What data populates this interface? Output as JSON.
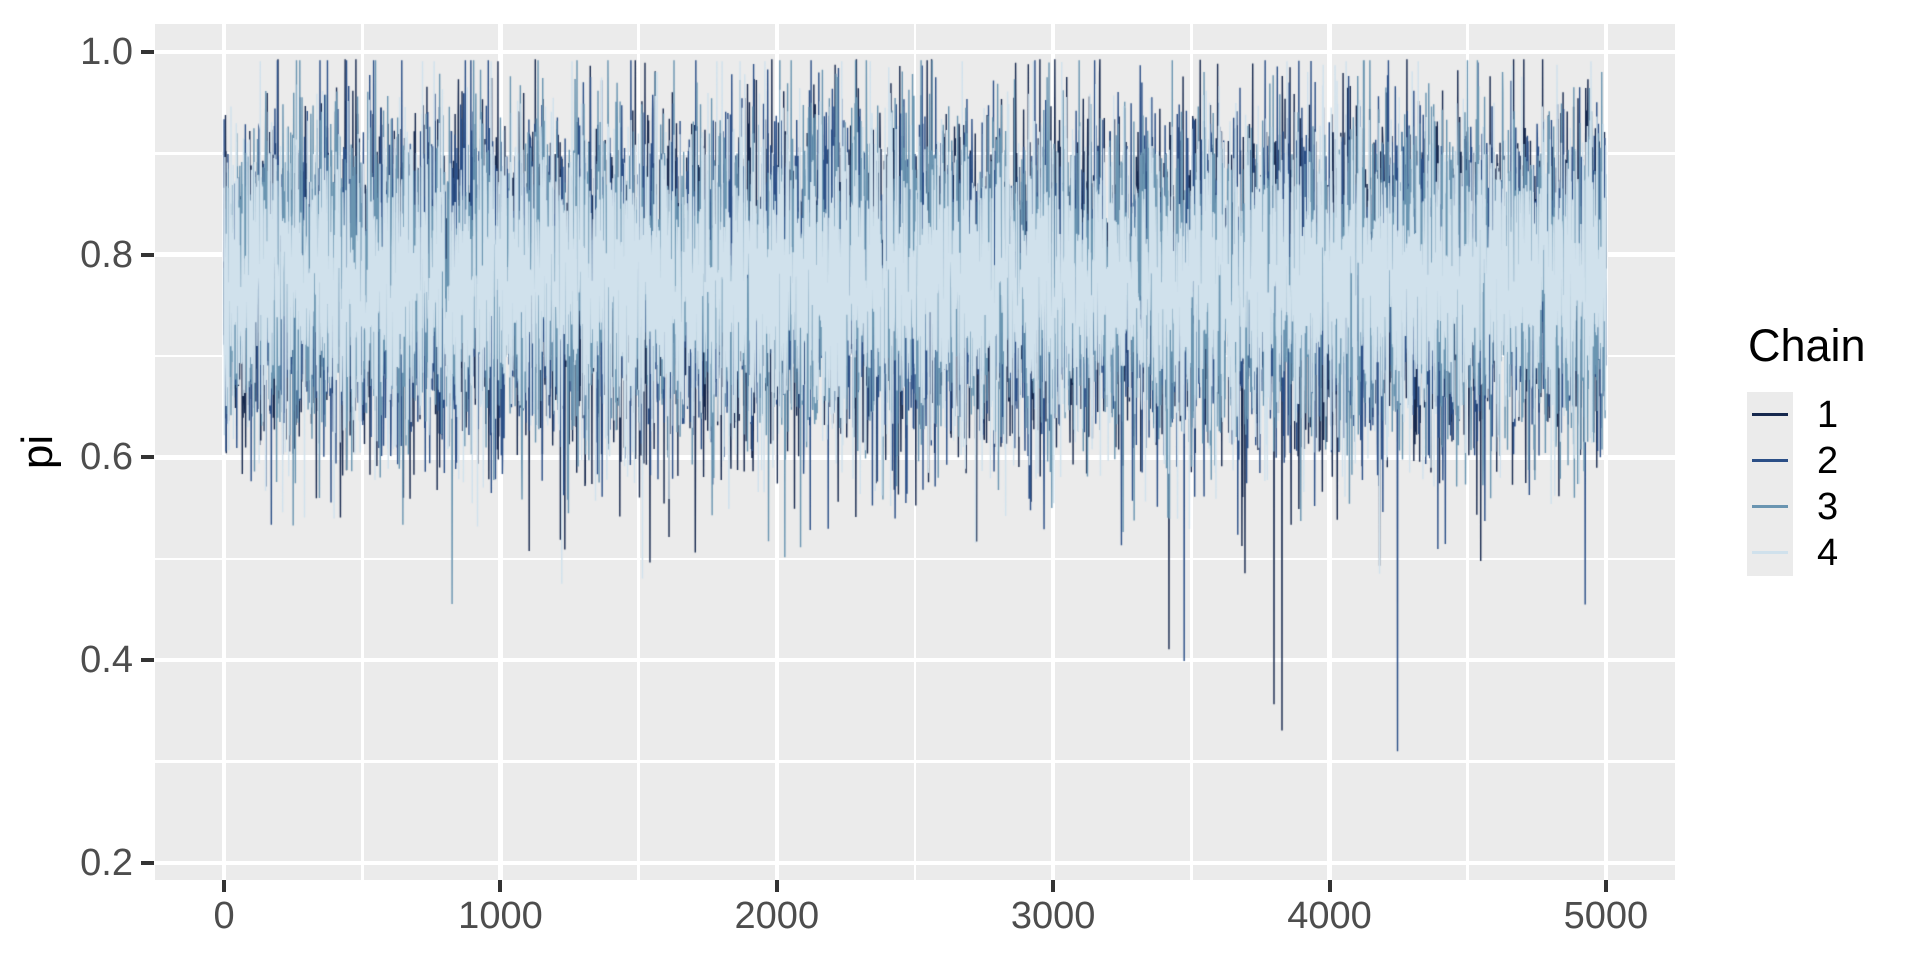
{
  "chart_data": {
    "type": "line",
    "subtype": "mcmc-trace",
    "title": "",
    "xlabel": "",
    "ylabel": "pi",
    "grid": true,
    "n_iterations": 5000,
    "x_axis": {
      "lim": [
        -250,
        5250
      ],
      "ticks": [
        0,
        1000,
        2000,
        3000,
        4000,
        5000
      ],
      "tick_labels": [
        "0",
        "1000",
        "2000",
        "3000",
        "4000",
        "5000"
      ],
      "minor_ticks": [
        500,
        1500,
        2500,
        3500,
        4500
      ]
    },
    "y_axis": {
      "lim": [
        0.183,
        1.0277
      ],
      "ticks": [
        0.2,
        0.4,
        0.6,
        0.8,
        1.0
      ],
      "tick_labels": [
        "0.2",
        "0.4",
        "0.6",
        "0.8",
        "1.0"
      ],
      "minor_ticks": [
        0.3,
        0.5,
        0.7,
        0.9
      ]
    },
    "legend": {
      "title": "Chain",
      "position": "right"
    },
    "series": [
      {
        "name": "1",
        "color": "#17294e",
        "mean": 0.778,
        "sd": 0.082,
        "min": 0.3,
        "max": 0.993,
        "dip_prob": 0.02,
        "dip_scale": 0.07,
        "seed": 101
      },
      {
        "name": "2",
        "color": "#2b4f87",
        "mean": 0.776,
        "sd": 0.08,
        "min": 0.31,
        "max": 0.992,
        "dip_prob": 0.02,
        "dip_scale": 0.065,
        "seed": 202
      },
      {
        "name": "3",
        "color": "#6a95b1",
        "mean": 0.777,
        "sd": 0.08,
        "min": 0.33,
        "max": 0.992,
        "dip_prob": 0.018,
        "dip_scale": 0.06,
        "seed": 303
      },
      {
        "name": "4",
        "color": "#d0e1ec",
        "mean": 0.775,
        "sd": 0.079,
        "min": 0.22,
        "max": 0.991,
        "dip_prob": 0.018,
        "dip_scale": 0.07,
        "seed": 404
      }
    ],
    "style": {
      "panel_bg": "#ebebeb",
      "grid_color": "#ffffff",
      "tick_color": "#333333",
      "tick_label_color": "#4d4d4d",
      "axis_title_color": "#000000",
      "legend_key_bg": "#ebebeb",
      "line_width": 1.4
    }
  }
}
